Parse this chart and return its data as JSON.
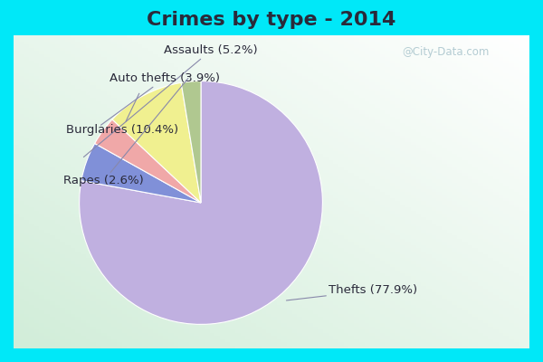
{
  "title": "Crimes by type - 2014",
  "slices": [
    {
      "label": "Thefts",
      "pct": 77.9,
      "color": "#c0b0e0"
    },
    {
      "label": "Assaults",
      "pct": 5.2,
      "color": "#8090d8"
    },
    {
      "label": "Auto thefts",
      "pct": 3.9,
      "color": "#f0a8a8"
    },
    {
      "label": "Burglaries",
      "pct": 10.4,
      "color": "#f0f090"
    },
    {
      "label": "Rapes",
      "pct": 2.6,
      "color": "#b0c890"
    }
  ],
  "cyan_color": "#00e8f8",
  "main_bg_top": "#ffffff",
  "main_bg_bottom": "#d0ecd8",
  "title_fontsize": 16,
  "label_fontsize": 9.5,
  "title_color": "#2a2a3a",
  "watermark": "@City-Data.com",
  "watermark_color": "#a8c4cc"
}
